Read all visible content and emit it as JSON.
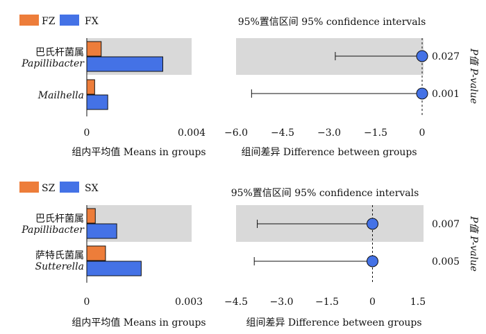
{
  "chart_data": [
    {
      "type": "bar",
      "legend": [
        {
          "label": "FZ",
          "color": "#ED7D3A"
        },
        {
          "label": "FX",
          "color": "#4472E6"
        }
      ],
      "categories": [
        {
          "cn": "巴氏杆菌属",
          "latin": "Papillibacter"
        },
        {
          "cn": "",
          "latin": "Mailhella"
        }
      ],
      "series": [
        {
          "name": "FZ",
          "values": [
            0.00055,
            0.0003
          ]
        },
        {
          "name": "FX",
          "values": [
            0.0029,
            0.0008
          ]
        }
      ],
      "xlim": [
        0,
        0.004
      ],
      "xticks": [
        "0",
        "0.004"
      ],
      "xlabel": "组内平均值  Means in groups",
      "shaded_rows": [
        0
      ]
    },
    {
      "type": "scatter",
      "title": "95%置信区间  95% confidence intervals",
      "points": [
        {
          "estimate": 0.0,
          "ci_low": -2.8,
          "ci_high": 0.0,
          "p_value": "0.027"
        },
        {
          "estimate": 0.0,
          "ci_low": -5.5,
          "ci_high": 0.0,
          "p_value": "0.001"
        }
      ],
      "xlim": [
        -6.0,
        0
      ],
      "xticks": [
        -6.0,
        -4.5,
        -3.0,
        -1.5,
        0
      ],
      "xtick_labels": [
        "−6.0",
        "−4.5",
        "−3.0",
        "−1.5",
        "0"
      ],
      "xlabel": "组间差异 Difference between groups",
      "right_label_prefix": "P值",
      "right_label_suffix": "P-value",
      "point_color": "#4472E6",
      "shaded_rows": [
        0
      ]
    },
    {
      "type": "bar",
      "legend": [
        {
          "label": "SZ",
          "color": "#ED7D3A"
        },
        {
          "label": "SX",
          "color": "#4472E6"
        }
      ],
      "categories": [
        {
          "cn": "巴氏杆菌属",
          "latin": "Papillibacter"
        },
        {
          "cn": "萨特氏菌属",
          "latin": "Sutterella"
        }
      ],
      "series": [
        {
          "name": "SZ",
          "values": [
            0.00025,
            0.00055
          ]
        },
        {
          "name": "SX",
          "values": [
            0.00088,
            0.0016
          ]
        }
      ],
      "xlim": [
        0,
        0.003
      ],
      "xticks": [
        "0",
        "0.003"
      ],
      "xlabel": "组内平均值  Means in groups",
      "shaded_rows": [
        0
      ]
    },
    {
      "type": "scatter",
      "title": "95%置信区间  95% confidence intervals",
      "points": [
        {
          "estimate": 0.0,
          "ci_low": -3.8,
          "ci_high": 0.0,
          "p_value": "0.007"
        },
        {
          "estimate": 0.0,
          "ci_low": -3.9,
          "ci_high": 0.0,
          "p_value": "0.005"
        }
      ],
      "xlim": [
        -4.5,
        1.5
      ],
      "xticks": [
        -4.5,
        -3.0,
        -1.5,
        0,
        1.5
      ],
      "xtick_labels": [
        "−4.5",
        "−3.0",
        "−1.5",
        "0",
        "1.5"
      ],
      "xlabel": "组间差异  Difference between groups",
      "right_label_prefix": "P值",
      "right_label_suffix": "P-value",
      "point_color": "#4472E6",
      "shaded_rows": [
        0
      ]
    }
  ]
}
